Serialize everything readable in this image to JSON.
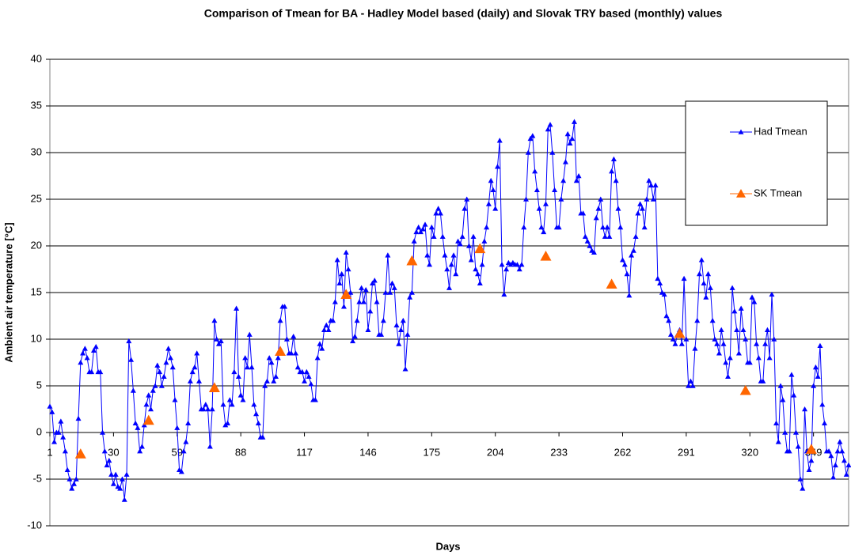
{
  "chart_data": {
    "type": "line",
    "title": "Comparison of Tmean for BA - Hadley Model based (daily) and Slovak TRY based (monthly) values",
    "x_label": "Days",
    "y_label": "Ambient air temperature [°C]",
    "xlim": [
      1,
      365
    ],
    "xticks": [
      1,
      30,
      59,
      88,
      117,
      146,
      175,
      204,
      233,
      262,
      291,
      320,
      349
    ],
    "ylim": [
      -10,
      40
    ],
    "yticks": [
      -10,
      -5,
      0,
      5,
      10,
      15,
      20,
      25,
      30,
      35,
      40
    ],
    "grid": true,
    "legend": "upper right",
    "series": [
      {
        "name": "Had Tmean",
        "color": "#0000ff",
        "x": [
          1,
          2,
          3,
          4,
          5,
          6,
          7,
          8,
          9,
          10,
          11,
          12,
          13,
          14,
          15,
          16,
          17,
          18,
          19,
          20,
          21,
          22,
          23,
          24,
          25,
          26,
          27,
          28,
          29,
          30,
          31,
          32,
          33,
          34,
          35,
          36,
          37,
          38,
          39,
          40,
          41,
          42,
          43,
          44,
          45,
          46,
          47,
          48,
          49,
          50,
          51,
          52,
          53,
          54,
          55,
          56,
          57,
          58,
          59,
          60,
          61,
          62,
          63,
          64,
          65,
          66,
          67,
          68,
          69,
          70,
          71,
          72,
          73,
          74,
          75,
          76,
          77,
          78,
          79,
          80,
          81,
          82,
          83,
          84,
          85,
          86,
          87,
          88,
          89,
          90,
          91,
          92,
          93,
          94,
          95,
          96,
          97,
          98,
          99,
          100,
          101,
          102,
          103,
          104,
          105,
          106,
          107,
          108,
          109,
          110,
          111,
          112,
          113,
          114,
          115,
          116,
          117,
          118,
          119,
          120,
          121,
          122,
          123,
          124,
          125,
          126,
          127,
          128,
          129,
          130,
          131,
          132,
          133,
          134,
          135,
          136,
          137,
          138,
          139,
          140,
          141,
          142,
          143,
          144,
          145,
          146,
          147,
          148,
          149,
          150,
          151,
          152,
          153,
          154,
          155,
          156,
          157,
          158,
          159,
          160,
          161,
          162,
          163,
          164,
          165,
          166,
          167,
          168,
          169,
          170,
          171,
          172,
          173,
          174,
          175,
          176,
          177,
          178,
          179,
          180,
          181,
          182,
          183,
          184,
          185,
          186,
          187,
          188,
          189,
          190,
          191,
          192,
          193,
          194,
          195,
          196,
          197,
          198,
          199,
          200,
          201,
          202,
          203,
          204,
          205,
          206,
          207,
          208,
          209,
          210,
          211,
          212,
          213,
          214,
          215,
          216,
          217,
          218,
          219,
          220,
          221,
          222,
          223,
          224,
          225,
          226,
          227,
          228,
          229,
          230,
          231,
          232,
          233,
          234,
          235,
          236,
          237,
          238,
          239,
          240,
          241,
          242,
          243,
          244,
          245,
          246,
          247,
          248,
          249,
          250,
          251,
          252,
          253,
          254,
          255,
          256,
          257,
          258,
          259,
          260,
          261,
          262,
          263,
          264,
          265,
          266,
          267,
          268,
          269,
          270,
          271,
          272,
          273,
          274,
          275,
          276,
          277,
          278,
          279,
          280,
          281,
          282,
          283,
          284,
          285,
          286,
          287,
          288,
          289,
          290,
          291,
          292,
          293,
          294,
          295,
          296,
          297,
          298,
          299,
          300,
          301,
          302,
          303,
          304,
          305,
          306,
          307,
          308,
          309,
          310,
          311,
          312,
          313,
          314,
          315,
          316,
          317,
          318,
          319,
          320,
          321,
          322,
          323,
          324,
          325,
          326,
          327,
          328,
          329,
          330,
          331,
          332,
          333,
          334,
          335,
          336,
          337,
          338,
          339,
          340,
          341,
          342,
          343,
          344,
          345,
          346,
          347,
          348,
          349,
          350,
          351,
          352,
          353,
          354,
          355,
          356,
          357,
          358,
          359,
          360,
          361,
          362,
          363,
          364,
          365
        ],
        "values": [
          2.8,
          2.2,
          -1,
          0,
          0,
          1.2,
          -0.5,
          -2,
          -4,
          -5,
          -6,
          -5.5,
          -5,
          1.5,
          7.5,
          8.5,
          9,
          8,
          6.5,
          6.5,
          8.8,
          9.2,
          6.5,
          6.5,
          0,
          -2,
          -3.5,
          -3,
          -4.5,
          -5.5,
          -4.5,
          -5.8,
          -6,
          -5,
          -7.2,
          -4.5,
          9.8,
          7.8,
          4.5,
          1,
          0.5,
          -2,
          -1.5,
          0.8,
          3,
          4,
          2.5,
          4.5,
          5,
          7.2,
          6.5,
          5,
          6,
          7.5,
          9,
          8,
          7,
          3.5,
          0.5,
          -4,
          -4.2,
          -2,
          -1,
          1,
          5.5,
          6.5,
          7,
          8.5,
          5.5,
          2.5,
          2.5,
          3,
          2.5,
          -1.5,
          2.5,
          12,
          10,
          9.5,
          9.8,
          3,
          0.8,
          1,
          3.5,
          3,
          6.5,
          13.3,
          6,
          4,
          3.5,
          8,
          7,
          10.5,
          7,
          3,
          2,
          1,
          -0.5,
          -0.5,
          5,
          5.5,
          8,
          7.5,
          5.5,
          6,
          8,
          12,
          13.5,
          13.5,
          10,
          8.5,
          8.5,
          10.3,
          8.5,
          7,
          6.5,
          6.5,
          5.5,
          6.5,
          6,
          5.2,
          3.5,
          3.5,
          8,
          9.5,
          9,
          11,
          11.5,
          11,
          12,
          12,
          14,
          18.5,
          16,
          17,
          13.5,
          19.3,
          17.5,
          15,
          9.8,
          10.3,
          12,
          14,
          15.5,
          14,
          15.3,
          11,
          13,
          16,
          16.3,
          14,
          10.5,
          10.5,
          12,
          15,
          19,
          15,
          16,
          15.5,
          11.5,
          9.5,
          11,
          12,
          6.8,
          10.5,
          14.5,
          15,
          20.5,
          21.5,
          22,
          21.5,
          21.8,
          22.3,
          19,
          18,
          22,
          21,
          23.5,
          24,
          23.5,
          21,
          19,
          17.5,
          15.5,
          18,
          19,
          17,
          20.5,
          20.2,
          21,
          24,
          25,
          20,
          18.5,
          21,
          17.5,
          17,
          16,
          18,
          20.5,
          22,
          24.5,
          27,
          26,
          24,
          28.5,
          31.3,
          18,
          14.8,
          17.5,
          18.2,
          18,
          18.2,
          18,
          18,
          17.5,
          18,
          22,
          25,
          30,
          31.5,
          31.8,
          28,
          26,
          24,
          22,
          21.5,
          24.5,
          32.5,
          33,
          30,
          26,
          22,
          22,
          25,
          27,
          29,
          32,
          31,
          31.5,
          33.3,
          27,
          27.5,
          23.5,
          23.5,
          21,
          20.5,
          20,
          19.5,
          19.3,
          23,
          24,
          25,
          22,
          21,
          22,
          21,
          28,
          29.3,
          27,
          24,
          22,
          18.5,
          18,
          17,
          14.7,
          19,
          19.5,
          21,
          23.5,
          24.5,
          24,
          22,
          25,
          27,
          26.5,
          25,
          26.5,
          16.5,
          16,
          15,
          14.8,
          12.5,
          12,
          10.5,
          10,
          9.5,
          10.5,
          11,
          9.5,
          16.5,
          10,
          5,
          5.5,
          5,
          9,
          12,
          17,
          18.5,
          16,
          14.5,
          17,
          15.5,
          12,
          10,
          9.5,
          8.5,
          11,
          9.5,
          7.5,
          6,
          8,
          15.5,
          13,
          11,
          8.5,
          13.3,
          11,
          10,
          7.5,
          7.5,
          14.5,
          14,
          9.5,
          8,
          5.5,
          5.5,
          9.5,
          11,
          8,
          14.8,
          10,
          1,
          -1,
          5,
          3.5,
          0,
          -2,
          -2,
          6.2,
          4,
          0,
          -1.5,
          -5,
          -6,
          2.5,
          -2,
          -4,
          -3,
          5,
          7,
          6,
          9.3,
          3,
          1,
          -2,
          -2,
          -2.5,
          -4.8,
          -3.5,
          -2,
          -1,
          -2,
          -3,
          -4.5,
          -3.5
        ]
      },
      {
        "name": "SK Tmean",
        "color": "#ff6600",
        "x": [
          15,
          46,
          76,
          106,
          136,
          166,
          197,
          227,
          257,
          288,
          318,
          348
        ],
        "values": [
          -2.3,
          1.3,
          4.8,
          8.7,
          14.8,
          18.4,
          19.7,
          18.9,
          15.9,
          10.6,
          4.5,
          -1.8
        ]
      }
    ]
  }
}
